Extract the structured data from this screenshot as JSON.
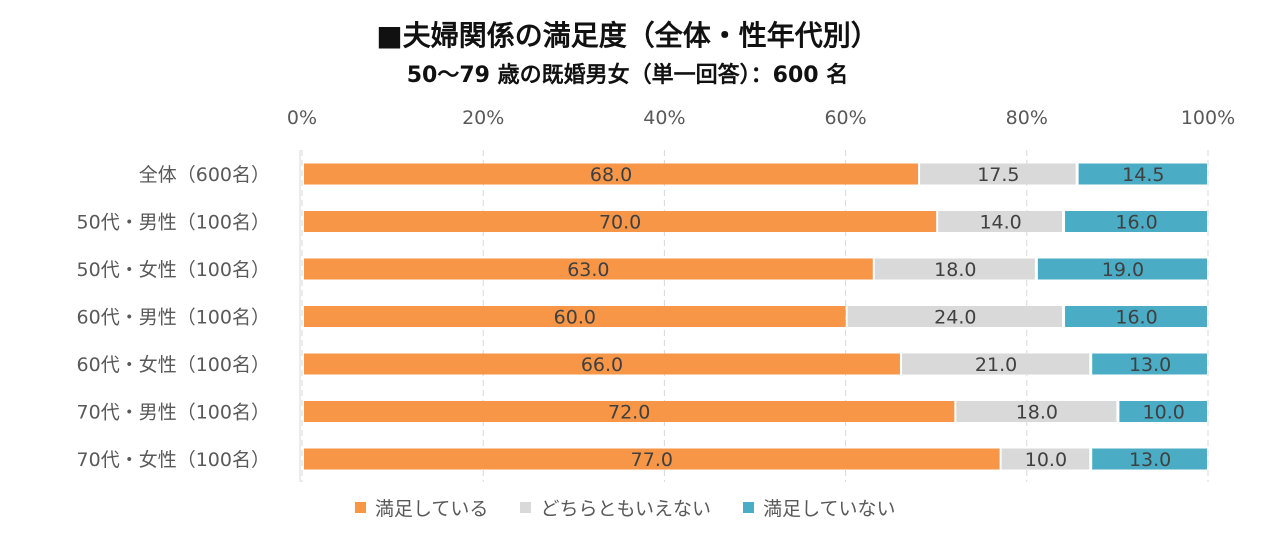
{
  "chart_data": {
    "type": "bar",
    "orientation": "horizontal",
    "stacked": "percent",
    "title": "■夫婦関係の満足度（全体・性年代別）",
    "subtitle": "50～79 歳の既婚男女（単一回答）：600 名",
    "categories": [
      "全体（600名）",
      "50代・男性（100名）",
      "50代・女性（100名）",
      "60代・男性（100名）",
      "60代・女性（100名）",
      "70代・男性（100名）",
      "70代・女性（100名）"
    ],
    "series": [
      {
        "name": "満足している",
        "color": "#F79646",
        "values": [
          68.0,
          70.0,
          63.0,
          60.0,
          66.0,
          72.0,
          77.0
        ]
      },
      {
        "name": "どちらともいえない",
        "color": "#D9D9D9",
        "values": [
          17.5,
          14.0,
          18.0,
          24.0,
          21.0,
          18.0,
          10.0
        ]
      },
      {
        "name": "満足していない",
        "color": "#4BACC6",
        "values": [
          14.5,
          16.0,
          19.0,
          16.0,
          13.0,
          10.0,
          13.0
        ]
      }
    ],
    "xticks": [
      "0%",
      "20%",
      "40%",
      "60%",
      "80%",
      "100%"
    ],
    "xlim": [
      0,
      100
    ],
    "grid": true,
    "legend_position": "bottom"
  }
}
